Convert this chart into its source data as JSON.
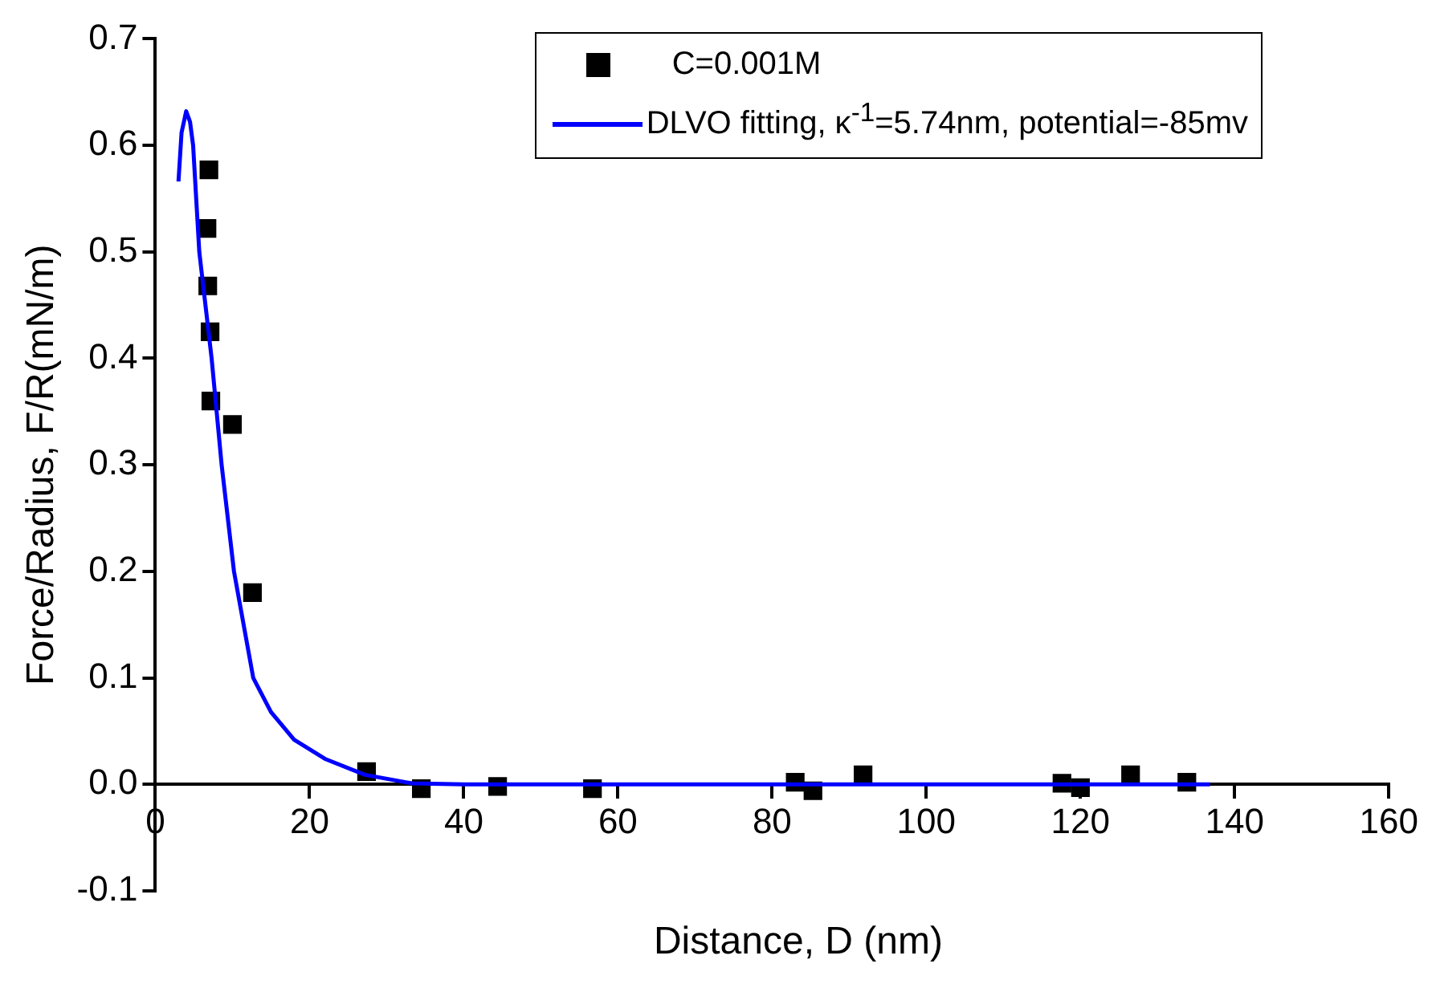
{
  "chart_data": {
    "type": "scatter",
    "xlabel": "Distance, D (nm)",
    "ylabel": "Force/Radius, F/R(mN/m)",
    "xlim": [
      0,
      160
    ],
    "xticks": [
      0,
      20,
      40,
      60,
      80,
      100,
      120,
      140,
      160
    ],
    "ylim": [
      -0.1,
      0.7
    ],
    "yticks": [
      -0.1,
      {
        "value": 0,
        "label": "0.0"
      },
      0.1,
      0.2,
      0.3,
      0.4,
      0.5,
      0.6,
      0.7
    ],
    "grid": false,
    "legend": "top right",
    "marker": "square",
    "series": [
      {
        "name": "C=0.001M",
        "type": "scatter",
        "color": "#000000",
        "x": [
          6.95,
          6.7,
          6.8,
          7.1,
          7.2,
          10.0,
          12.6,
          27.4,
          34.5,
          44.4,
          56.7,
          83.0,
          85.3,
          91.8,
          117.6,
          120.0,
          126.5,
          133.8
        ],
        "values": [
          0.577,
          0.522,
          0.468,
          0.425,
          0.36,
          0.338,
          0.18,
          0.012,
          -0.004,
          -0.002,
          -0.004,
          0.002,
          -0.006,
          0.009,
          0.001,
          -0.003,
          0.009,
          0.002
        ]
      },
      {
        "name": "DLVO fitting, κ$^{-1}$=5.74nm, potential=-85mv",
        "type": "line",
        "color": "#0000ff",
        "line_style": "solid",
        "marker": "none",
        "x": [
          3.0,
          3.4,
          4.0,
          4.5,
          4.9,
          5.7,
          6.5,
          7.3,
          8.6,
          10.2,
          12.7,
          15,
          18,
          22,
          27.2,
          33.3,
          40,
          60,
          100,
          136.8
        ],
        "values": [
          0.566,
          0.612,
          0.632,
          0.622,
          0.6,
          0.5,
          0.45,
          0.4,
          0.3,
          0.2,
          0.1,
          0.068,
          0.042,
          0.024,
          0.009,
          0.001,
          0,
          0,
          0,
          0
        ]
      }
    ]
  }
}
